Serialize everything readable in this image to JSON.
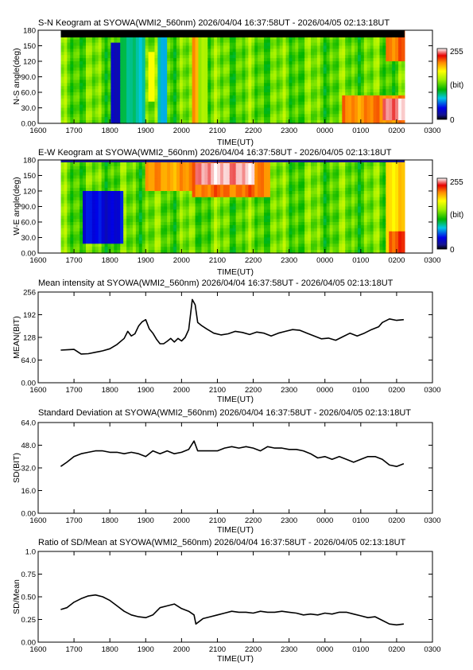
{
  "chart_data": [
    {
      "type": "heatmap",
      "title": "S-N Keogram at SYOWA(WMI2_560nm)    2026/04/04 16:37:58UT - 2026/04/05 02:13:18UT",
      "xlabel": "TIME(UT)",
      "ylabel": "N-S angle(deg)",
      "x_ticks": [
        "1600",
        "1700",
        "1800",
        "1900",
        "2000",
        "2100",
        "2200",
        "2300",
        "0000",
        "0100",
        "0200",
        "0300"
      ],
      "y_ticks": [
        "0.00",
        "30.0",
        "60.0",
        "90.0",
        "120",
        "150",
        "180"
      ],
      "ylim": [
        0,
        180
      ],
      "colorbar": {
        "max_label": "255",
        "mid_label": "(bit)",
        "min_label": "0"
      },
      "features": [
        {
          "t0": 18.0,
          "t1": 18.8,
          "a0": 0,
          "a1": 155,
          "level": 0.12
        },
        {
          "t0": 18.3,
          "t1": 19.0,
          "a0": 0,
          "a1": 180,
          "level": 0.35
        },
        {
          "t0": 19.08,
          "t1": 19.22,
          "a0": 40,
          "a1": 140,
          "level": 0.68
        },
        {
          "t0": 19.35,
          "t1": 19.6,
          "a0": 0,
          "a1": 180,
          "level": 0.3
        },
        {
          "t0": 20.3,
          "t1": 20.45,
          "a0": 0,
          "a1": 180,
          "level": 0.78
        },
        {
          "t0": 20.45,
          "t1": 20.7,
          "a0": 0,
          "a1": 180,
          "level": 0.58
        },
        {
          "t0": 24.5,
          "t1": 26.2,
          "a0": 0,
          "a1": 55,
          "level": 0.8
        },
        {
          "t0": 25.6,
          "t1": 26.2,
          "a0": 5,
          "a1": 50,
          "level": 0.96
        },
        {
          "t0": 25.7,
          "t1": 26.2,
          "a0": 120,
          "a1": 180,
          "level": 0.82
        }
      ]
    },
    {
      "type": "heatmap",
      "title": "E-W Keogram at SYOWA(WMI2_560nm)    2026/04/04 16:37:58UT - 2026/04/05 02:13:18UT",
      "xlabel": "TIME(UT)",
      "ylabel": "W-E angle(deg)",
      "x_ticks": [
        "1600",
        "1700",
        "1800",
        "1900",
        "2000",
        "2100",
        "2200",
        "2300",
        "0000",
        "0100",
        "0200",
        "0300"
      ],
      "y_ticks": [
        "0.00",
        "30.0",
        "60.0",
        "90.0",
        "120",
        "150",
        "180"
      ],
      "ylim": [
        0,
        180
      ],
      "colorbar": {
        "max_label": "255",
        "mid_label": "(bit)",
        "min_label": "0"
      },
      "features": [
        {
          "t0": 17.2,
          "t1": 18.4,
          "a0": 20,
          "a1": 120,
          "level": 0.15
        },
        {
          "t0": 19.0,
          "t1": 20.3,
          "a0": 120,
          "a1": 180,
          "level": 0.78
        },
        {
          "t0": 20.3,
          "t1": 22.5,
          "a0": 110,
          "a1": 180,
          "level": 0.82
        },
        {
          "t0": 20.4,
          "t1": 22.0,
          "a0": 135,
          "a1": 175,
          "level": 0.97
        },
        {
          "t0": 25.7,
          "t1": 26.2,
          "a0": 0,
          "a1": 180,
          "level": 0.72
        },
        {
          "t0": 25.75,
          "t1": 26.2,
          "a0": 0,
          "a1": 40,
          "level": 0.85
        }
      ]
    },
    {
      "type": "line",
      "title": "Mean intensity at SYOWA(WMI2_560nm)    2026/04/04 16:37:58UT - 2026/04/05 02:13:18UT",
      "xlabel": "TIME(UT)",
      "ylabel": "MEAN(BIT)",
      "x_ticks": [
        "1600",
        "1700",
        "1800",
        "1900",
        "2000",
        "2100",
        "2200",
        "2300",
        "0000",
        "0100",
        "0200",
        "0300"
      ],
      "y_ticks": [
        "0.00",
        "64.0",
        "128",
        "192",
        "256"
      ],
      "ylim": [
        0,
        256
      ],
      "x": [
        16.63,
        16.8,
        17.0,
        17.2,
        17.4,
        17.6,
        17.8,
        18.0,
        18.2,
        18.4,
        18.5,
        18.6,
        18.7,
        18.8,
        18.9,
        19.0,
        19.1,
        19.2,
        19.3,
        19.4,
        19.5,
        19.6,
        19.7,
        19.8,
        19.9,
        20.0,
        20.1,
        20.2,
        20.3,
        20.38,
        20.45,
        20.55,
        20.7,
        20.9,
        21.1,
        21.3,
        21.5,
        21.7,
        21.9,
        22.1,
        22.3,
        22.5,
        22.7,
        22.9,
        23.1,
        23.3,
        23.5,
        23.7,
        23.9,
        24.1,
        24.3,
        24.5,
        24.7,
        24.9,
        25.1,
        25.3,
        25.5,
        25.6,
        25.8,
        26.0,
        26.2
      ],
      "values": [
        92,
        93,
        94,
        81,
        82,
        86,
        90,
        96,
        108,
        125,
        145,
        132,
        138,
        160,
        172,
        178,
        152,
        140,
        123,
        110,
        110,
        117,
        125,
        115,
        125,
        118,
        128,
        150,
        235,
        220,
        170,
        162,
        152,
        140,
        135,
        138,
        145,
        142,
        136,
        143,
        140,
        132,
        140,
        145,
        150,
        148,
        140,
        132,
        124,
        126,
        120,
        130,
        140,
        132,
        140,
        150,
        158,
        170,
        180,
        176,
        178
      ]
    },
    {
      "type": "line",
      "title": "Standard Deviation at SYOWA(WMI2_560nm)    2026/04/04 16:37:58UT - 2026/04/05 02:13:18UT",
      "xlabel": "TIME(UT)",
      "ylabel": "SD(BIT)",
      "x_ticks": [
        "1600",
        "1700",
        "1800",
        "1900",
        "2000",
        "2100",
        "2200",
        "2300",
        "0000",
        "0100",
        "0200",
        "0300"
      ],
      "y_ticks": [
        "0.00",
        "16.0",
        "32.0",
        "48.0",
        "64.0"
      ],
      "ylim": [
        0,
        64
      ],
      "x": [
        16.63,
        16.8,
        17.0,
        17.2,
        17.4,
        17.6,
        17.8,
        18.0,
        18.2,
        18.4,
        18.6,
        18.8,
        19.0,
        19.2,
        19.4,
        19.6,
        19.8,
        20.0,
        20.2,
        20.35,
        20.45,
        20.6,
        20.8,
        21.0,
        21.2,
        21.4,
        21.6,
        21.8,
        22.0,
        22.2,
        22.4,
        22.6,
        22.8,
        23.0,
        23.2,
        23.4,
        23.6,
        23.8,
        24.0,
        24.2,
        24.4,
        24.6,
        24.8,
        25.0,
        25.2,
        25.4,
        25.6,
        25.8,
        26.0,
        26.2
      ],
      "values": [
        33,
        36,
        40,
        42,
        43,
        44,
        44,
        43,
        43,
        42,
        43,
        42,
        40,
        44,
        42,
        44,
        42,
        43,
        45,
        51,
        44,
        44,
        44,
        44,
        46,
        47,
        46,
        47,
        46,
        44,
        47,
        46,
        46,
        45,
        45,
        44,
        42,
        39,
        40,
        38,
        40,
        38,
        36,
        38,
        40,
        40,
        38,
        34,
        33,
        35
      ]
    },
    {
      "type": "line",
      "title": "Ratio of SD/Mean at SYOWA(WMI2_560nm)    2026/04/04 16:37:58UT - 2026/04/05 02:13:18UT",
      "xlabel": "TIME(UT)",
      "ylabel": "SD/Mean",
      "x_ticks": [
        "1600",
        "1700",
        "1800",
        "1900",
        "2000",
        "2100",
        "2200",
        "2300",
        "0000",
        "0100",
        "0200",
        "0300"
      ],
      "y_ticks": [
        "0.00",
        "0.25",
        "0.50",
        "0.75",
        "1.0"
      ],
      "ylim": [
        0,
        1.0
      ],
      "x": [
        16.63,
        16.8,
        17.0,
        17.2,
        17.4,
        17.6,
        17.8,
        18.0,
        18.2,
        18.4,
        18.6,
        18.8,
        19.0,
        19.2,
        19.4,
        19.6,
        19.8,
        20.0,
        20.2,
        20.35,
        20.4,
        20.6,
        20.8,
        21.0,
        21.2,
        21.4,
        21.6,
        21.8,
        22.0,
        22.2,
        22.4,
        22.6,
        22.8,
        23.0,
        23.2,
        23.4,
        23.6,
        23.8,
        24.0,
        24.2,
        24.4,
        24.6,
        24.8,
        25.0,
        25.2,
        25.4,
        25.6,
        25.8,
        26.0,
        26.2
      ],
      "values": [
        0.36,
        0.38,
        0.44,
        0.48,
        0.51,
        0.52,
        0.5,
        0.46,
        0.4,
        0.34,
        0.3,
        0.28,
        0.27,
        0.3,
        0.38,
        0.4,
        0.42,
        0.37,
        0.34,
        0.3,
        0.2,
        0.26,
        0.28,
        0.3,
        0.32,
        0.34,
        0.33,
        0.33,
        0.32,
        0.34,
        0.33,
        0.33,
        0.34,
        0.33,
        0.32,
        0.3,
        0.31,
        0.3,
        0.32,
        0.31,
        0.33,
        0.33,
        0.31,
        0.29,
        0.27,
        0.28,
        0.24,
        0.2,
        0.19,
        0.2
      ]
    }
  ]
}
